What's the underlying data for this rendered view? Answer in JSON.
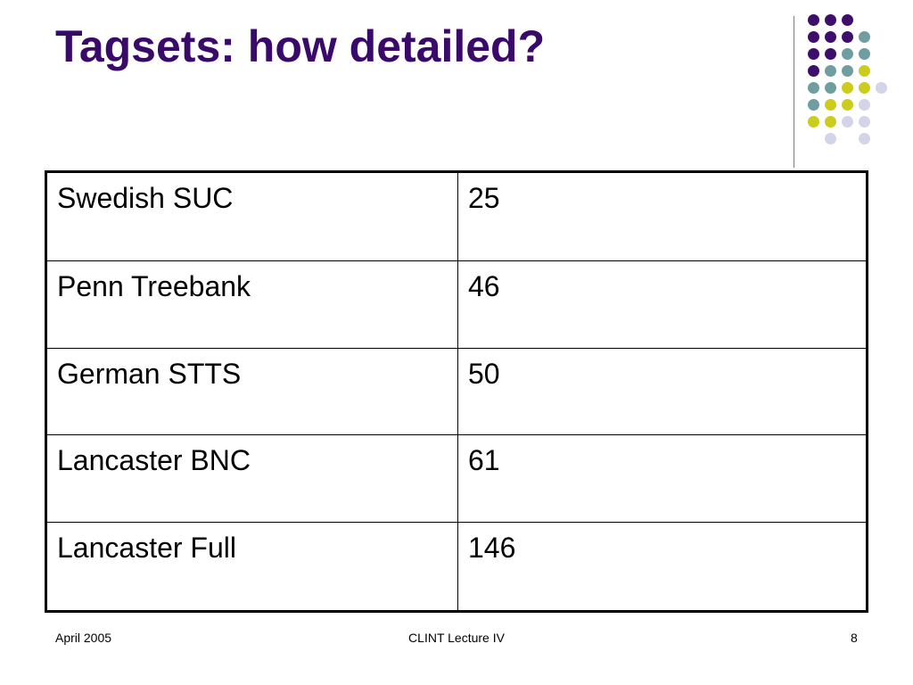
{
  "title": "Tagsets: how detailed?",
  "table": {
    "rows": [
      {
        "name": "Swedish SUC",
        "value": "25"
      },
      {
        "name": "Penn Treebank",
        "value": "46"
      },
      {
        "name": "German STTS",
        "value": "50"
      },
      {
        "name": "Lancaster BNC",
        "value": "61"
      },
      {
        "name": "Lancaster Full",
        "value": "146"
      }
    ]
  },
  "footer": {
    "date": "April 2005",
    "center": "CLINT Lecture IV",
    "page": "8"
  },
  "colors": {
    "title": "#3a0a6a",
    "purple": "#3d0e6b",
    "teal": "#6f9da0",
    "yellow": "#cccc1e",
    "lavender": "#d4d4e8"
  }
}
